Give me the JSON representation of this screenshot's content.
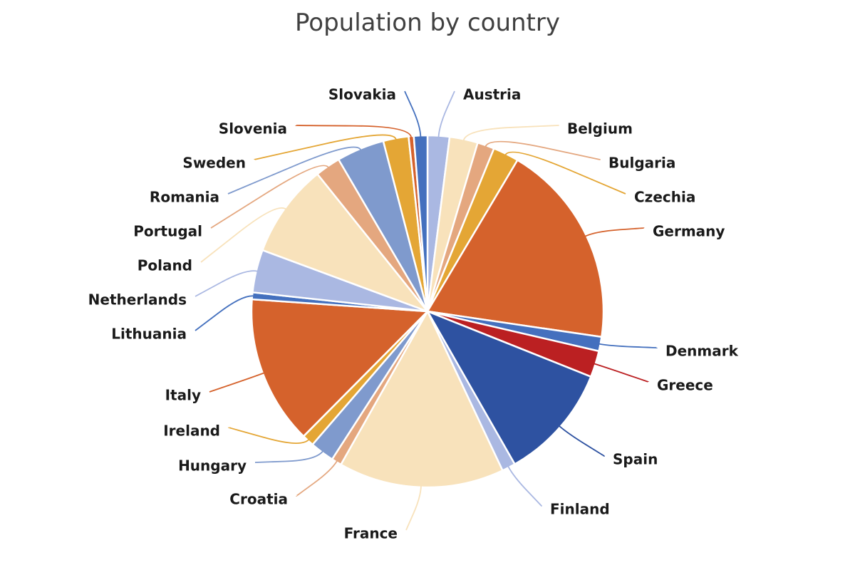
{
  "chart_data": {
    "type": "pie",
    "title": "Population by country",
    "legend": "none",
    "slices": [
      {
        "label": "Austria",
        "value": 8.9,
        "color": "#aab8e2"
      },
      {
        "label": "Belgium",
        "value": 11.5,
        "color": "#f8e2bb"
      },
      {
        "label": "Bulgaria",
        "value": 6.9,
        "color": "#e4a77f"
      },
      {
        "label": "Czechia",
        "value": 10.5,
        "color": "#e4a635"
      },
      {
        "label": "Germany",
        "value": 83.1,
        "color": "#d5622c"
      },
      {
        "label": "Denmark",
        "value": 5.8,
        "color": "#4470be"
      },
      {
        "label": "Greece",
        "value": 10.7,
        "color": "#bb2022"
      },
      {
        "label": "Spain",
        "value": 47.3,
        "color": "#2e52a1"
      },
      {
        "label": "Finland",
        "value": 5.5,
        "color": "#aab8e2"
      },
      {
        "label": "France",
        "value": 67.3,
        "color": "#f8e2bb"
      },
      {
        "label": "Croatia",
        "value": 4.1,
        "color": "#e4a77f"
      },
      {
        "label": "Hungary",
        "value": 9.8,
        "color": "#7f9acd"
      },
      {
        "label": "Ireland",
        "value": 4.9,
        "color": "#e4a635"
      },
      {
        "label": "Italy",
        "value": 60.4,
        "color": "#d5622c"
      },
      {
        "label": "Lithuania",
        "value": 2.8,
        "color": "#4470be"
      },
      {
        "label": "Netherlands",
        "value": 17.4,
        "color": "#aab8e2"
      },
      {
        "label": "Poland",
        "value": 38.0,
        "color": "#f8e2bb"
      },
      {
        "label": "Portugal",
        "value": 10.3,
        "color": "#e4a77f"
      },
      {
        "label": "Romania",
        "value": 19.4,
        "color": "#7f9acd"
      },
      {
        "label": "Sweden",
        "value": 10.3,
        "color": "#e4a635"
      },
      {
        "label": "Slovenia",
        "value": 2.1,
        "color": "#d5622c"
      },
      {
        "label": "Slovakia",
        "value": 5.5,
        "color": "#4470be"
      }
    ]
  }
}
